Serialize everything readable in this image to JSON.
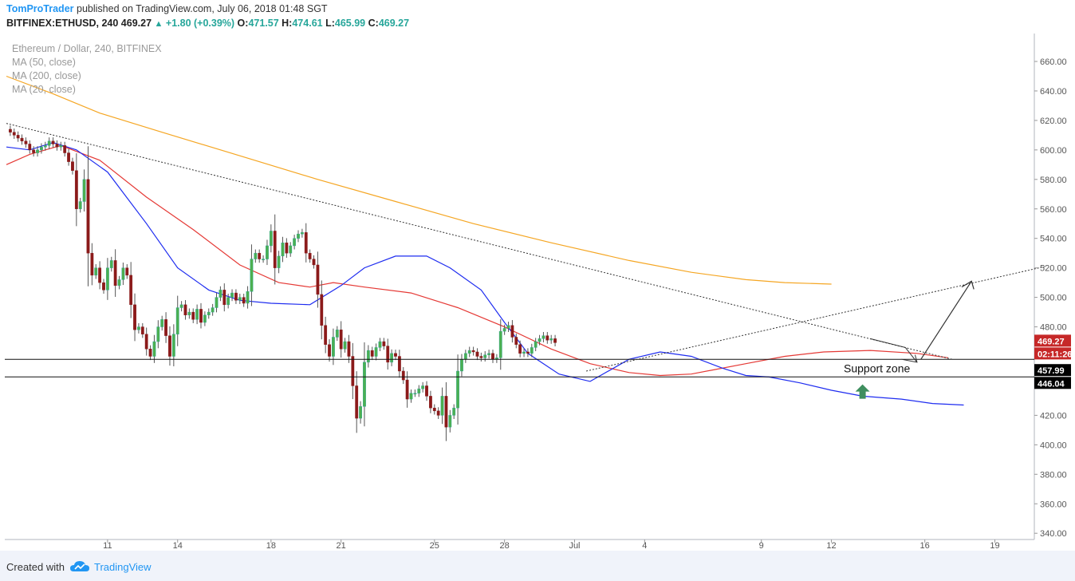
{
  "header": {
    "author": "TomProTrader",
    "published_text": "published on TradingView.com, July 06, 2018 01:48 SGT",
    "symbol": "BITFINEX:ETHUSD, 240",
    "last": "469.27",
    "change": "+1.80 (+0.39%)",
    "o_label": "O:",
    "o_value": "471.57",
    "h_label": "H:",
    "h_value": "474.61",
    "l_label": "L:",
    "l_value": "465.99",
    "c_label": "C:",
    "c_value": "469.27"
  },
  "legend": {
    "title": "Ethereum / Dollar, 240, BITFINEX",
    "items": [
      "MA (50, close)",
      "MA (200, close)",
      "MA (20, close)"
    ]
  },
  "footer": {
    "created": "Created with",
    "brand": "TradingView"
  },
  "chart_data": {
    "type": "candlestick",
    "ylim": [
      335,
      670
    ],
    "y_ticks": [
      660,
      640,
      620,
      600,
      580,
      560,
      540,
      520,
      500,
      480,
      460,
      440,
      420,
      400,
      380,
      360,
      340
    ],
    "y_tick_labels": [
      "660.00",
      "640.00",
      "620.00",
      "600.00",
      "580.00",
      "560.00",
      "540.00",
      "520.00",
      "500.00",
      "480.00",
      "",
      "",
      "420.00",
      "400.00",
      "380.00",
      "360.00",
      "340.00"
    ],
    "x_ticks": [
      {
        "label": "11",
        "bar": 26
      },
      {
        "label": "14",
        "bar": 44
      },
      {
        "label": "18",
        "bar": 68
      },
      {
        "label": "21",
        "bar": 86
      },
      {
        "label": "25",
        "bar": 110
      },
      {
        "label": "28",
        "bar": 128
      },
      {
        "label": "Jul",
        "bar": 146
      },
      {
        "label": "4",
        "bar": 164
      },
      {
        "label": "9",
        "bar": 194
      },
      {
        "label": "12",
        "bar": 212
      },
      {
        "label": "16",
        "bar": 236
      },
      {
        "label": "19",
        "bar": 254
      }
    ],
    "closes": [
      614,
      612,
      610,
      608,
      606,
      604,
      600,
      598,
      600,
      602,
      603,
      606,
      604,
      602,
      603,
      598,
      592,
      586,
      560,
      565,
      580,
      530,
      515,
      520,
      510,
      505,
      520,
      525,
      508,
      512,
      520,
      515,
      495,
      478,
      480,
      475,
      465,
      460,
      470,
      480,
      485,
      474,
      460,
      475,
      493,
      495,
      488,
      490,
      485,
      492,
      483,
      488,
      490,
      493,
      500,
      505,
      495,
      500,
      503,
      498,
      500,
      496,
      504,
      526,
      530,
      526,
      526,
      535,
      545,
      520,
      528,
      537,
      530,
      535,
      540,
      543,
      544,
      530,
      526,
      522,
      502,
      481,
      468,
      460,
      473,
      478,
      465,
      470,
      460,
      440,
      418,
      426,
      456,
      464,
      460,
      466,
      470,
      467,
      456,
      462,
      460,
      450,
      444,
      431,
      435,
      435,
      438,
      440,
      433,
      425,
      423,
      420,
      433,
      412,
      420,
      425,
      450,
      458,
      462,
      464,
      463,
      460,
      459,
      461,
      462,
      458,
      459,
      477,
      479,
      481,
      473,
      468,
      462,
      463,
      462,
      466,
      470,
      472,
      474,
      471,
      472,
      469.27
    ],
    "series": [
      {
        "name": "MA (50, close)",
        "color": "#e53935",
        "points": [
          [
            0,
            590
          ],
          [
            6,
            597
          ],
          [
            14,
            603
          ],
          [
            24,
            593
          ],
          [
            36,
            568
          ],
          [
            48,
            546
          ],
          [
            60,
            522
          ],
          [
            70,
            510
          ],
          [
            78,
            507
          ],
          [
            84,
            510
          ],
          [
            92,
            507
          ],
          [
            104,
            503
          ],
          [
            116,
            493
          ],
          [
            128,
            480
          ],
          [
            140,
            465
          ],
          [
            150,
            455
          ],
          [
            160,
            449
          ],
          [
            168,
            447
          ],
          [
            176,
            448
          ],
          [
            182,
            451
          ],
          [
            190,
            455
          ],
          [
            200,
            460
          ],
          [
            210,
            463
          ],
          [
            222,
            464
          ],
          [
            234,
            462
          ],
          [
            242,
            459
          ]
        ]
      },
      {
        "name": "MA (200, close)",
        "color": "#f5a623",
        "points": [
          [
            0,
            650
          ],
          [
            12,
            638
          ],
          [
            24,
            625
          ],
          [
            40,
            612
          ],
          [
            60,
            596
          ],
          [
            80,
            580
          ],
          [
            100,
            565
          ],
          [
            120,
            550
          ],
          [
            140,
            537
          ],
          [
            160,
            525
          ],
          [
            176,
            517
          ],
          [
            190,
            512
          ],
          [
            200,
            510
          ],
          [
            212,
            509
          ]
        ]
      },
      {
        "name": "MA (20, close)",
        "color": "#1e2cf0",
        "points": [
          [
            0,
            602
          ],
          [
            6,
            600
          ],
          [
            12,
            605
          ],
          [
            18,
            600
          ],
          [
            26,
            585
          ],
          [
            36,
            550
          ],
          [
            44,
            520
          ],
          [
            52,
            505
          ],
          [
            60,
            498
          ],
          [
            68,
            496
          ],
          [
            78,
            495
          ],
          [
            86,
            508
          ],
          [
            92,
            520
          ],
          [
            100,
            528
          ],
          [
            108,
            528
          ],
          [
            114,
            520
          ],
          [
            122,
            505
          ],
          [
            128,
            483
          ],
          [
            134,
            462
          ],
          [
            142,
            448
          ],
          [
            150,
            443
          ],
          [
            156,
            452
          ],
          [
            160,
            458
          ],
          [
            168,
            463
          ],
          [
            176,
            460
          ],
          [
            184,
            452
          ],
          [
            190,
            447
          ],
          [
            196,
            446
          ],
          [
            204,
            442
          ],
          [
            212,
            437
          ],
          [
            220,
            433
          ],
          [
            230,
            431
          ],
          [
            238,
            428
          ],
          [
            246,
            427
          ]
        ]
      }
    ],
    "support_zone": {
      "label": "Support zone",
      "upper": 457.99,
      "lower": 446.04
    },
    "price_labels": [
      {
        "value": "469.27",
        "kind": "last"
      },
      {
        "value": "02:11:26",
        "kind": "countdown"
      },
      {
        "value": "457.99",
        "kind": "level"
      },
      {
        "value": "446.04",
        "kind": "level"
      }
    ],
    "trendlines": [
      {
        "kind": "dotted",
        "from": {
          "bar": 0,
          "price": 618
        },
        "to": {
          "bar": 243,
          "price": 458
        }
      },
      {
        "kind": "dotted",
        "from": {
          "bar": 149,
          "price": 450
        },
        "to": {
          "bar": 267,
          "price": 521
        }
      }
    ]
  }
}
